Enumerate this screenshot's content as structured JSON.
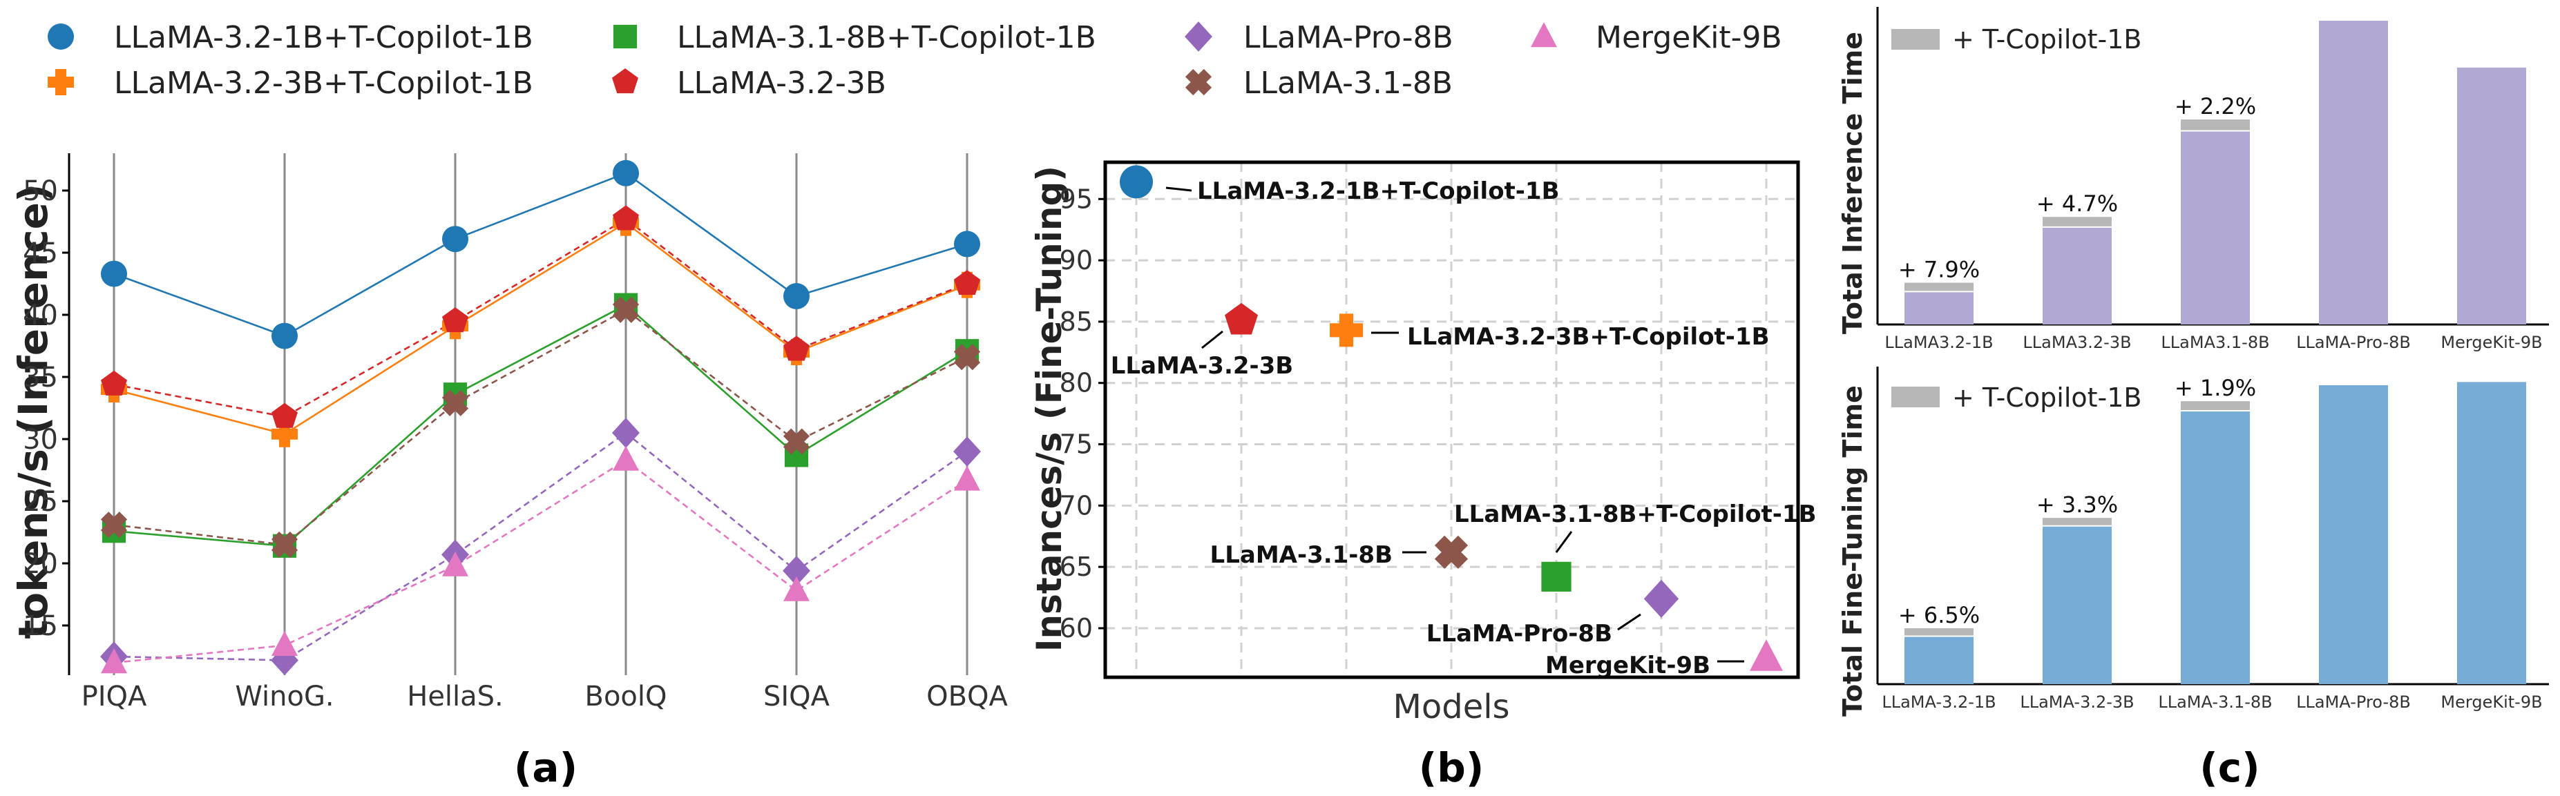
{
  "colors": {
    "blue": "#1f77b4",
    "orange": "#ff7f0e",
    "green": "#2ca02c",
    "red": "#d62728",
    "purple": "#9467bd",
    "brown": "#8c564b",
    "pink": "#e377c2",
    "bar_lavender": "#b2a8d4",
    "bar_blue": "#76acd6",
    "bar_overhead": "#b7b7b7",
    "grid_dash": "#d0d0d0",
    "vline": "#8a8a8a",
    "axis": "#000000"
  },
  "legend": [
    {
      "label": "LLaMA-3.2-1B+T-Copilot-1B",
      "marker": "circle-icon",
      "color": "#1f77b4"
    },
    {
      "label": "LLaMA-3.2-3B+T-Copilot-1B",
      "marker": "plus-icon",
      "color": "#ff7f0e"
    },
    {
      "label": "LLaMA-3.1-8B+T-Copilot-1B",
      "marker": "square-icon",
      "color": "#2ca02c"
    },
    {
      "label": "LLaMA-3.2-3B",
      "marker": "pentagon-icon",
      "color": "#d62728"
    },
    {
      "label": "LLaMA-Pro-8B",
      "marker": "diamond-icon",
      "color": "#9467bd"
    },
    {
      "label": "LLaMA-3.1-8B",
      "marker": "cross-icon",
      "color": "#8c564b"
    },
    {
      "label": "MergeKit-9B",
      "marker": "triangle-icon",
      "color": "#e377c2"
    }
  ],
  "panels": {
    "a": {
      "label": "(a)"
    },
    "b": {
      "label": "(b)"
    },
    "c": {
      "label": "(c)"
    }
  },
  "chart_data": [
    {
      "id": "a",
      "type": "line",
      "ylabel": "tokens/s (Inference)",
      "xlabel": "",
      "categories": [
        "PIQA",
        "WinoG.",
        "HellaS.",
        "BoolQ",
        "SIQA",
        "OBQA"
      ],
      "yticks": [
        15,
        20,
        25,
        30,
        35,
        40,
        45,
        50
      ],
      "ylim": [
        11,
        53
      ],
      "series": [
        {
          "name": "LLaMA-3.2-1B+T-Copilot-1B",
          "marker": "circle",
          "color": "#1f77b4",
          "dashed": false,
          "values": [
            43.3,
            38.3,
            46.1,
            51.4,
            41.5,
            45.7
          ]
        },
        {
          "name": "LLaMA-3.2-3B+T-Copilot-1B",
          "marker": "plus",
          "color": "#ff7f0e",
          "dashed": false,
          "values": [
            34.0,
            30.4,
            39.1,
            47.4,
            37.0,
            42.4
          ]
        },
        {
          "name": "LLaMA-3.2-3B",
          "marker": "pentagon",
          "color": "#d62728",
          "dashed": true,
          "values": [
            34.4,
            31.8,
            39.5,
            47.7,
            37.2,
            42.5
          ]
        },
        {
          "name": "LLaMA-3.1-8B+T-Copilot-1B",
          "marker": "square",
          "color": "#2ca02c",
          "dashed": false,
          "values": [
            22.6,
            21.4,
            33.6,
            40.8,
            28.7,
            37.1
          ]
        },
        {
          "name": "LLaMA-3.1-8B",
          "marker": "cross",
          "color": "#8c564b",
          "dashed": true,
          "values": [
            23.1,
            21.5,
            32.9,
            40.4,
            29.8,
            36.6
          ]
        },
        {
          "name": "LLaMA-Pro-8B",
          "marker": "diamond",
          "color": "#9467bd",
          "dashed": true,
          "values": [
            12.5,
            12.2,
            20.7,
            30.5,
            19.4,
            29.0
          ]
        },
        {
          "name": "MergeKit-9B",
          "marker": "triangle",
          "color": "#e377c2",
          "dashed": true,
          "values": [
            12.0,
            13.4,
            19.8,
            28.3,
            17.8,
            26.7
          ]
        }
      ]
    },
    {
      "id": "b",
      "type": "scatter",
      "xlabel": "Models",
      "ylabel": "Instances/s (Fine-Tuning)",
      "yticks": [
        60,
        65,
        70,
        75,
        80,
        85,
        90,
        95
      ],
      "ylim": [
        56,
        98
      ],
      "grid": true,
      "points": [
        {
          "name": "LLaMA-3.2-1B+T-Copilot-1B",
          "label": "LLaMA-3.2-1B+T-Copilot-1B",
          "x": 0,
          "y": 96.4,
          "marker": "circle",
          "color": "#1f77b4"
        },
        {
          "name": "LLaMA-3.2-3B",
          "label": "LLaMA-3.2-3B",
          "x": 1,
          "y": 85.1,
          "marker": "pentagon",
          "color": "#d62728"
        },
        {
          "name": "LLaMA-3.2-3B+T-Copilot-1B",
          "label": "LLaMA-3.2-3B+T-Copilot-1B",
          "x": 2,
          "y": 84.3,
          "marker": "plus",
          "color": "#ff7f0e"
        },
        {
          "name": "LLaMA-3.1-8B",
          "label": "LLaMA-3.1-8B",
          "x": 3,
          "y": 66.2,
          "marker": "cross",
          "color": "#8c564b"
        },
        {
          "name": "LLaMA-3.1-8B+T-Copilot-1B",
          "label": "LLaMA-3.1-8B+T-Copilot-1B",
          "x": 4,
          "y": 64.2,
          "marker": "square",
          "color": "#2ca02c"
        },
        {
          "name": "LLaMA-Pro-8B",
          "label": "LLaMA-Pro-8B",
          "x": 5,
          "y": 62.4,
          "marker": "diamond",
          "color": "#9467bd"
        },
        {
          "name": "MergeKit-9B",
          "label": "MergeKit-9B",
          "x": 6,
          "y": 57.6,
          "marker": "triangle",
          "color": "#e377c2"
        }
      ]
    },
    {
      "id": "c-top",
      "type": "bar",
      "ylabel": "Total Inference Time",
      "legend_label": "+ T-Copilot-1B",
      "categories": [
        "LLaMA3.2-1B",
        "LLaMA3.2-3B",
        "LLaMA3.1-8B",
        "LLaMA-Pro-8B",
        "MergeKit-9B"
      ],
      "base": [
        26,
        77,
        153,
        240,
        203
      ],
      "overhead": [
        7,
        8,
        9,
        0,
        0
      ],
      "overhead_labels": [
        "+ 7.9%",
        "+ 4.7%",
        "+ 2.2%",
        "",
        ""
      ],
      "ylim": [
        0,
        240
      ]
    },
    {
      "id": "c-bottom",
      "type": "bar",
      "ylabel": "Total Fine-Tuning Time",
      "legend_label": "+ T-Copilot-1B",
      "categories": [
        "LLaMA-3.2-1B",
        "LLaMA-3.2-3B",
        "LLaMA-3.1-8B",
        "LLaMA-Pro-8B",
        "MergeKit-9B"
      ],
      "base": [
        30,
        99,
        171,
        187,
        189
      ],
      "overhead": [
        5,
        5,
        6,
        0,
        0
      ],
      "overhead_labels": [
        "+ 6.5%",
        "+ 3.3%",
        "+ 1.9%",
        "",
        ""
      ],
      "ylim": [
        0,
        190
      ]
    }
  ]
}
